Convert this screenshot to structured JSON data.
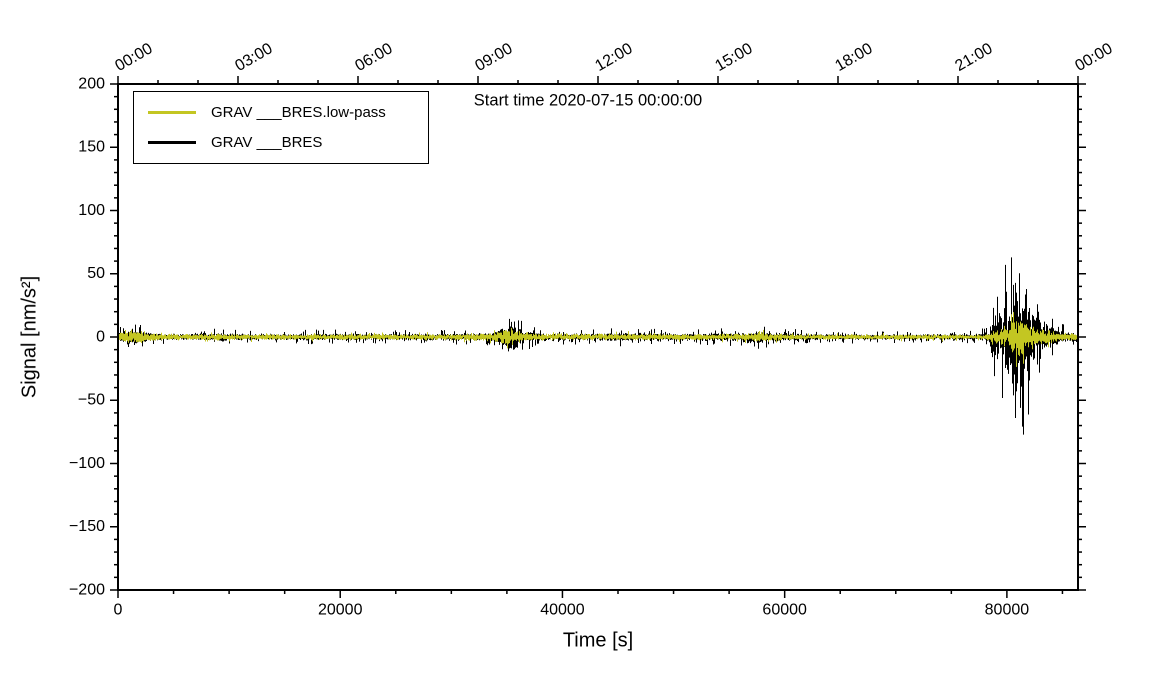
{
  "figure": {
    "title_annotation": "Start time 2020-07-15 00:00:00",
    "xlabel": "Time [s]",
    "ylabel": "Signal [nm/s²]"
  },
  "chart_data": {
    "type": "line",
    "title": "Start time 2020-07-15 00:00:00",
    "xlabel": "Time [s]",
    "ylabel": "Signal [nm/s²]",
    "xlim": [
      0,
      86400
    ],
    "ylim": [
      -200,
      200
    ],
    "x_ticks": [
      0,
      20000,
      40000,
      60000,
      80000
    ],
    "x_minor_step": 5000,
    "y_ticks": [
      -200,
      -150,
      -100,
      -50,
      0,
      50,
      100,
      150,
      200
    ],
    "y_minor_step": 10,
    "top_axis": {
      "tick_seconds": [
        0,
        10800,
        21600,
        32400,
        43200,
        54000,
        64800,
        75600,
        86400
      ],
      "tick_labels": [
        "00:00",
        "03:00",
        "06:00",
        "09:00",
        "12:00",
        "15:00",
        "18:00",
        "21:00",
        "00:00"
      ],
      "minor_step": 3600
    },
    "grid": false,
    "legend_position": "top-left",
    "draw_order": [
      1,
      0
    ],
    "series": [
      {
        "name": "GRAV ___BRES.low-pass",
        "color": "#c3c622",
        "type": "noise-envelope",
        "envelope": [
          [
            0,
            6
          ],
          [
            800,
            8
          ],
          [
            1600,
            9
          ],
          [
            2400,
            7
          ],
          [
            3200,
            5
          ],
          [
            5000,
            4
          ],
          [
            8500,
            4.5
          ],
          [
            9200,
            5
          ],
          [
            10000,
            4
          ],
          [
            20000,
            4
          ],
          [
            30000,
            4
          ],
          [
            34200,
            7
          ],
          [
            34800,
            10
          ],
          [
            35200,
            13
          ],
          [
            35700,
            9
          ],
          [
            36500,
            6
          ],
          [
            38000,
            4.5
          ],
          [
            45500,
            5
          ],
          [
            47000,
            4.5
          ],
          [
            52000,
            4
          ],
          [
            56500,
            5
          ],
          [
            57500,
            7
          ],
          [
            58500,
            5
          ],
          [
            62000,
            3.5
          ],
          [
            70000,
            3.5
          ],
          [
            77500,
            3.5
          ],
          [
            78400,
            5
          ],
          [
            78700,
            10
          ],
          [
            79400,
            12
          ],
          [
            79900,
            15
          ],
          [
            80300,
            19
          ],
          [
            80600,
            24
          ],
          [
            80900,
            28
          ],
          [
            81200,
            25
          ],
          [
            81500,
            22
          ],
          [
            81900,
            18
          ],
          [
            82400,
            15
          ],
          [
            83000,
            12
          ],
          [
            83700,
            9
          ],
          [
            84500,
            7
          ],
          [
            85300,
            5.5
          ],
          [
            86400,
            4.5
          ]
        ]
      },
      {
        "name": "GRAV ___BRES",
        "color": "#000000",
        "type": "noise-envelope",
        "envelope": [
          [
            0,
            9
          ],
          [
            800,
            11
          ],
          [
            1600,
            13
          ],
          [
            2400,
            11
          ],
          [
            3200,
            7
          ],
          [
            5000,
            5.5
          ],
          [
            8500,
            7
          ],
          [
            9200,
            8
          ],
          [
            10000,
            6
          ],
          [
            14000,
            5.5
          ],
          [
            20000,
            6
          ],
          [
            26000,
            5.5
          ],
          [
            30000,
            6
          ],
          [
            33000,
            6.5
          ],
          [
            34200,
            12
          ],
          [
            34800,
            24
          ],
          [
            35200,
            33
          ],
          [
            35700,
            20
          ],
          [
            36500,
            11
          ],
          [
            38000,
            7
          ],
          [
            42000,
            6
          ],
          [
            45500,
            7.5
          ],
          [
            47000,
            7
          ],
          [
            50000,
            6
          ],
          [
            52000,
            6
          ],
          [
            56500,
            8
          ],
          [
            57500,
            11
          ],
          [
            58500,
            8
          ],
          [
            62000,
            5.5
          ],
          [
            68000,
            5
          ],
          [
            73000,
            5
          ],
          [
            77500,
            5.5
          ],
          [
            78400,
            10
          ],
          [
            78700,
            52
          ],
          [
            79000,
            38
          ],
          [
            79400,
            45
          ],
          [
            79900,
            62
          ],
          [
            80300,
            85
          ],
          [
            80600,
            110
          ],
          [
            80900,
            132
          ],
          [
            81200,
            108
          ],
          [
            81500,
            85
          ],
          [
            81900,
            65
          ],
          [
            82400,
            48
          ],
          [
            83000,
            34
          ],
          [
            83700,
            22
          ],
          [
            84500,
            14
          ],
          [
            85300,
            9
          ],
          [
            86400,
            7
          ]
        ]
      }
    ]
  }
}
